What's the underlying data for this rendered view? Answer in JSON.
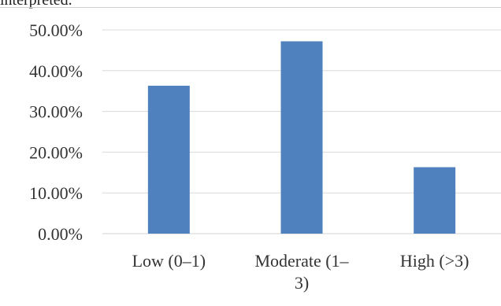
{
  "document": {
    "top_text": "interpreted."
  },
  "chart_data": {
    "type": "bar",
    "categories": [
      [
        "Low (0–1)"
      ],
      [
        "Moderate (1–",
        "3)"
      ],
      [
        "High (>3)"
      ]
    ],
    "values": [
      36.3,
      47.2,
      16.3
    ],
    "ytick_labels": [
      "0.00%",
      "10.00%",
      "20.00%",
      "30.00%",
      "40.00%",
      "50.00%"
    ],
    "ylim": [
      0,
      50
    ],
    "ytick_step": 10,
    "grid": true,
    "legend": "none",
    "colors": {
      "bar": "#4e81bd",
      "grid": "#d9d9d9",
      "axis": "#d9d9d9",
      "text": "#333333"
    }
  }
}
